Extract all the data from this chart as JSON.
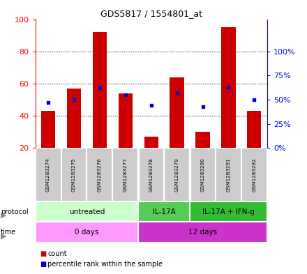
{
  "title": "GDS5817 / 1554801_at",
  "samples": [
    "GSM1283274",
    "GSM1283275",
    "GSM1283276",
    "GSM1283277",
    "GSM1283278",
    "GSM1283279",
    "GSM1283280",
    "GSM1283281",
    "GSM1283282"
  ],
  "counts": [
    43,
    57,
    92,
    54,
    27,
    64,
    30,
    95,
    43
  ],
  "percentile_ranks": [
    47,
    50,
    62,
    55,
    44,
    57,
    43,
    63,
    50
  ],
  "ymin": 20,
  "ymax": 100,
  "bar_color": "#cc0000",
  "dot_color": "#0000cc",
  "protocol_groups": [
    {
      "label": "untreated",
      "start": 0,
      "end": 4,
      "color": "#ccffcc"
    },
    {
      "label": "IL-17A",
      "start": 4,
      "end": 6,
      "color": "#55cc55"
    },
    {
      "label": "IL-17A + IFN-g",
      "start": 6,
      "end": 9,
      "color": "#33bb33"
    }
  ],
  "time_groups": [
    {
      "label": "0 days",
      "start": 0,
      "end": 4,
      "color": "#ff99ff"
    },
    {
      "label": "12 days",
      "start": 4,
      "end": 9,
      "color": "#cc33cc"
    }
  ],
  "sample_bg_color": "#cccccc",
  "sample_border_color": "#ffffff",
  "legend_count_color": "#cc0000",
  "legend_pct_color": "#0000cc",
  "right_tick_positions": [
    20,
    35,
    50,
    65,
    80
  ],
  "right_tick_labels": [
    "0%",
    "25%",
    "50%",
    "75%",
    "100%"
  ]
}
